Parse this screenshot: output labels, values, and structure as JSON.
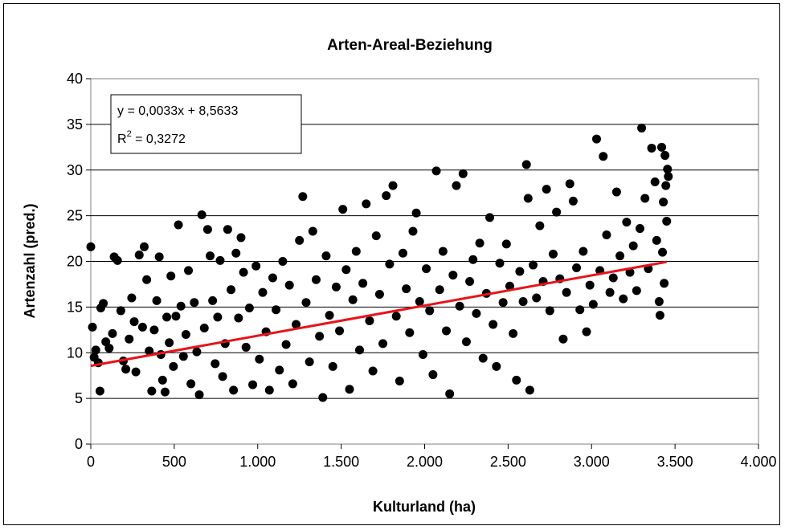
{
  "chart_data": {
    "type": "scatter",
    "title": "Arten-Areal-Beziehung",
    "xlabel": "Kulturland (ha)",
    "ylabel": "Artenzahl (pred.)",
    "xlim": [
      0,
      4000
    ],
    "ylim": [
      0,
      40
    ],
    "x_ticks": [
      0,
      500,
      1000,
      1500,
      2000,
      2500,
      3000,
      3500,
      4000
    ],
    "x_tick_labels": [
      "0",
      "500",
      "1.000",
      "1.500",
      "2.000",
      "2.500",
      "3.000",
      "3.500",
      "4.000"
    ],
    "y_ticks": [
      0,
      5,
      10,
      15,
      20,
      25,
      30,
      35,
      40
    ],
    "y_tick_labels": [
      "0",
      "5",
      "10",
      "15",
      "20",
      "25",
      "30",
      "35",
      "40"
    ],
    "grid": "horizontal",
    "trendline": {
      "slope": 0.0033,
      "intercept": 8.5633,
      "x_range": [
        0,
        3450
      ],
      "color": "#e8131b",
      "equation_text": "y = 0,0033x + 8,5633",
      "r2_label": "R",
      "r2_exp": "2",
      "r2_value": " = 0,3272"
    },
    "marker_color": "#000000",
    "points": [
      [
        0,
        21.6
      ],
      [
        10,
        12.8
      ],
      [
        20,
        9.5
      ],
      [
        30,
        10.3
      ],
      [
        45,
        8.9
      ],
      [
        55,
        5.8
      ],
      [
        60,
        14.9
      ],
      [
        75,
        15.4
      ],
      [
        90,
        11.2
      ],
      [
        110,
        10.5
      ],
      [
        130,
        12.1
      ],
      [
        140,
        20.5
      ],
      [
        160,
        20.1
      ],
      [
        180,
        14.6
      ],
      [
        195,
        9.1
      ],
      [
        210,
        8.2
      ],
      [
        230,
        11.5
      ],
      [
        245,
        16.0
      ],
      [
        260,
        13.4
      ],
      [
        270,
        7.9
      ],
      [
        290,
        20.7
      ],
      [
        310,
        12.8
      ],
      [
        320,
        21.6
      ],
      [
        335,
        18.0
      ],
      [
        350,
        10.2
      ],
      [
        365,
        5.8
      ],
      [
        380,
        12.5
      ],
      [
        395,
        15.7
      ],
      [
        410,
        20.5
      ],
      [
        420,
        9.8
      ],
      [
        430,
        7.0
      ],
      [
        445,
        5.7
      ],
      [
        455,
        13.9
      ],
      [
        470,
        11.1
      ],
      [
        480,
        18.4
      ],
      [
        495,
        8.5
      ],
      [
        510,
        14.0
      ],
      [
        525,
        24.0
      ],
      [
        540,
        15.1
      ],
      [
        555,
        9.6
      ],
      [
        570,
        12.0
      ],
      [
        585,
        19.0
      ],
      [
        600,
        6.6
      ],
      [
        620,
        15.5
      ],
      [
        635,
        10.1
      ],
      [
        650,
        5.4
      ],
      [
        665,
        25.1
      ],
      [
        680,
        12.7
      ],
      [
        700,
        23.5
      ],
      [
        715,
        20.6
      ],
      [
        730,
        15.7
      ],
      [
        745,
        8.8
      ],
      [
        760,
        13.9
      ],
      [
        775,
        20.1
      ],
      [
        790,
        7.4
      ],
      [
        805,
        11.0
      ],
      [
        820,
        23.5
      ],
      [
        840,
        16.9
      ],
      [
        855,
        5.9
      ],
      [
        870,
        20.9
      ],
      [
        885,
        13.8
      ],
      [
        900,
        22.6
      ],
      [
        915,
        18.8
      ],
      [
        930,
        10.6
      ],
      [
        950,
        14.9
      ],
      [
        970,
        6.5
      ],
      [
        990,
        19.5
      ],
      [
        1010,
        9.3
      ],
      [
        1030,
        16.6
      ],
      [
        1050,
        12.3
      ],
      [
        1070,
        5.9
      ],
      [
        1090,
        18.2
      ],
      [
        1110,
        14.7
      ],
      [
        1130,
        8.1
      ],
      [
        1150,
        20.0
      ],
      [
        1170,
        10.9
      ],
      [
        1190,
        17.4
      ],
      [
        1210,
        6.6
      ],
      [
        1230,
        13.1
      ],
      [
        1250,
        22.3
      ],
      [
        1270,
        27.1
      ],
      [
        1290,
        15.5
      ],
      [
        1310,
        9.0
      ],
      [
        1330,
        23.3
      ],
      [
        1350,
        18.0
      ],
      [
        1370,
        11.8
      ],
      [
        1390,
        5.1
      ],
      [
        1410,
        20.6
      ],
      [
        1430,
        14.1
      ],
      [
        1450,
        8.5
      ],
      [
        1470,
        17.2
      ],
      [
        1490,
        12.4
      ],
      [
        1510,
        25.7
      ],
      [
        1530,
        19.1
      ],
      [
        1550,
        6.0
      ],
      [
        1570,
        15.8
      ],
      [
        1590,
        21.1
      ],
      [
        1610,
        10.3
      ],
      [
        1630,
        17.6
      ],
      [
        1650,
        26.3
      ],
      [
        1670,
        13.5
      ],
      [
        1690,
        8.0
      ],
      [
        1710,
        22.8
      ],
      [
        1730,
        16.4
      ],
      [
        1750,
        11.0
      ],
      [
        1770,
        27.2
      ],
      [
        1790,
        19.7
      ],
      [
        1810,
        28.3
      ],
      [
        1830,
        14.0
      ],
      [
        1850,
        6.9
      ],
      [
        1870,
        20.9
      ],
      [
        1890,
        17.0
      ],
      [
        1910,
        12.2
      ],
      [
        1930,
        23.3
      ],
      [
        1950,
        25.3
      ],
      [
        1970,
        15.6
      ],
      [
        1990,
        9.8
      ],
      [
        2010,
        19.2
      ],
      [
        2030,
        14.6
      ],
      [
        2050,
        7.6
      ],
      [
        2070,
        29.9
      ],
      [
        2090,
        16.9
      ],
      [
        2110,
        21.1
      ],
      [
        2130,
        12.4
      ],
      [
        2150,
        5.5
      ],
      [
        2170,
        18.5
      ],
      [
        2190,
        28.3
      ],
      [
        2210,
        15.1
      ],
      [
        2230,
        29.6
      ],
      [
        2250,
        11.2
      ],
      [
        2270,
        17.8
      ],
      [
        2290,
        20.2
      ],
      [
        2310,
        14.3
      ],
      [
        2330,
        22.0
      ],
      [
        2350,
        9.4
      ],
      [
        2370,
        16.5
      ],
      [
        2390,
        24.8
      ],
      [
        2410,
        13.1
      ],
      [
        2430,
        8.5
      ],
      [
        2450,
        19.8
      ],
      [
        2470,
        15.5
      ],
      [
        2490,
        21.9
      ],
      [
        2510,
        17.3
      ],
      [
        2530,
        12.1
      ],
      [
        2550,
        7.0
      ],
      [
        2570,
        18.9
      ],
      [
        2590,
        15.6
      ],
      [
        2610,
        30.6
      ],
      [
        2620,
        26.9
      ],
      [
        2630,
        5.9
      ],
      [
        2650,
        19.6
      ],
      [
        2670,
        16.0
      ],
      [
        2690,
        23.9
      ],
      [
        2710,
        17.8
      ],
      [
        2730,
        27.9
      ],
      [
        2750,
        14.6
      ],
      [
        2770,
        20.8
      ],
      [
        2790,
        25.4
      ],
      [
        2810,
        18.1
      ],
      [
        2830,
        11.5
      ],
      [
        2850,
        16.6
      ],
      [
        2870,
        28.5
      ],
      [
        2890,
        26.6
      ],
      [
        2910,
        19.3
      ],
      [
        2930,
        14.7
      ],
      [
        2950,
        21.1
      ],
      [
        2970,
        12.3
      ],
      [
        2990,
        17.4
      ],
      [
        3010,
        15.3
      ],
      [
        3030,
        33.4
      ],
      [
        3050,
        19.0
      ],
      [
        3070,
        31.5
      ],
      [
        3090,
        22.9
      ],
      [
        3110,
        16.6
      ],
      [
        3130,
        18.2
      ],
      [
        3150,
        27.6
      ],
      [
        3170,
        20.6
      ],
      [
        3190,
        15.9
      ],
      [
        3210,
        24.3
      ],
      [
        3230,
        18.8
      ],
      [
        3250,
        21.7
      ],
      [
        3270,
        16.8
      ],
      [
        3290,
        23.6
      ],
      [
        3300,
        34.6
      ],
      [
        3320,
        26.9
      ],
      [
        3340,
        19.2
      ],
      [
        3360,
        32.4
      ],
      [
        3380,
        28.7
      ],
      [
        3390,
        22.3
      ],
      [
        3410,
        14.1
      ],
      [
        3420,
        32.5
      ],
      [
        3430,
        26.5
      ],
      [
        3440,
        31.6
      ],
      [
        3445,
        28.3
      ],
      [
        3450,
        24.4
      ],
      [
        3455,
        30.1
      ],
      [
        3460,
        29.3
      ],
      [
        3435,
        17.6
      ],
      [
        3425,
        21.0
      ],
      [
        3405,
        15.6
      ]
    ]
  }
}
